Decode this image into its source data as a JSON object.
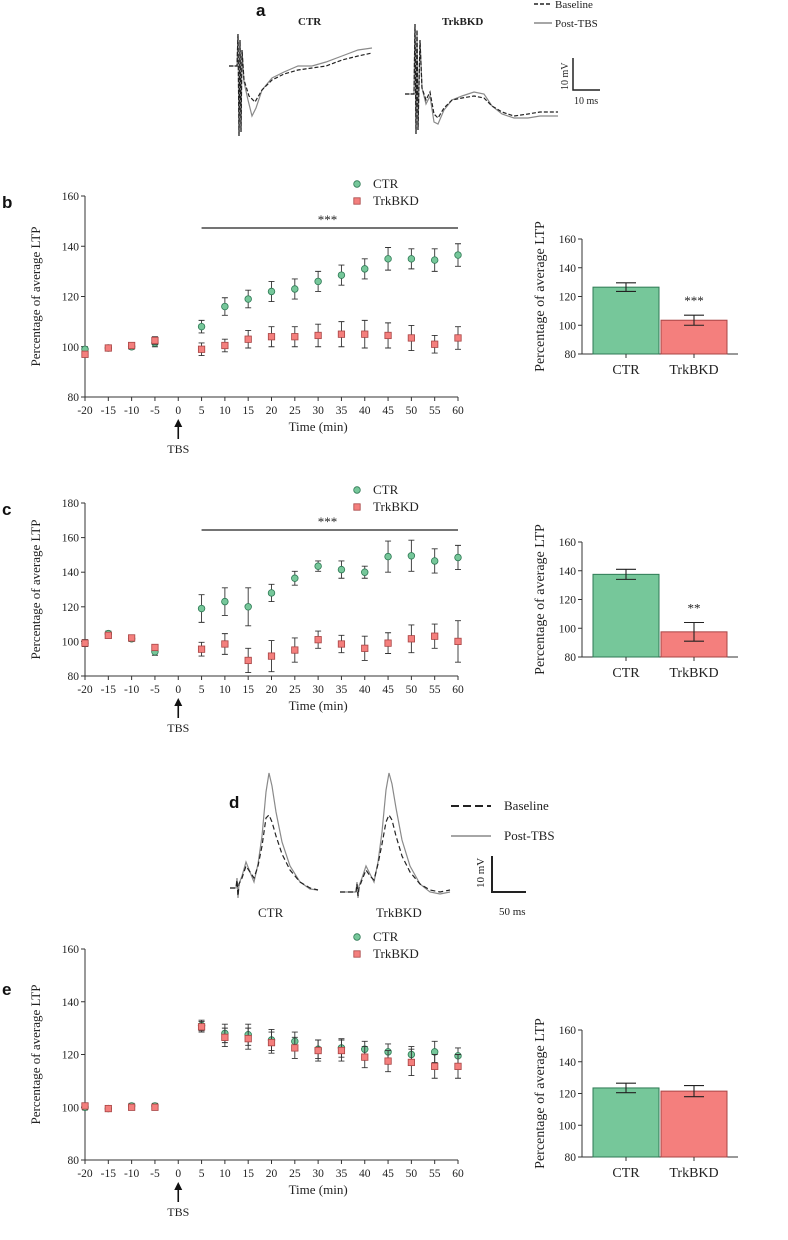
{
  "colors": {
    "ctr": "#76c79a",
    "ctr_stroke": "#2f7a55",
    "trk": "#f47f7d",
    "trk_stroke": "#a84444",
    "trace_base": "#222222",
    "trace_post": "#8a8a8a"
  },
  "panel_a": {
    "letter": "a",
    "trace_titles": [
      "CTR",
      "TrkBKD"
    ],
    "legend": {
      "baseline": "Baseline",
      "post": "Post-TBS"
    },
    "scale_v": "10 mV",
    "scale_h": "10 ms"
  },
  "panel_d": {
    "letter": "d",
    "trace_labels": [
      "CTR",
      "TrkBKD"
    ],
    "legend": {
      "baseline": "Baseline",
      "post": "Post-TBS"
    },
    "scale_v": "10 mV",
    "scale_h": "50 ms"
  },
  "tbs_label": "TBS",
  "chart_data": [
    {
      "id": "b_time",
      "letter": "b",
      "type": "scatter",
      "xlabel": "Time (min)",
      "ylabel": "Percentage of average LTP",
      "x": [
        -20,
        -15,
        -10,
        -5,
        5,
        10,
        15,
        20,
        25,
        30,
        35,
        40,
        45,
        50,
        55,
        60
      ],
      "xticks": [
        "-20",
        "-15",
        "-10",
        "-5",
        "0",
        "5",
        "10",
        "15",
        "20",
        "25",
        "30",
        "35",
        "40",
        "45",
        "50",
        "55",
        "60"
      ],
      "yticks": [
        "80",
        "100",
        "120",
        "140",
        "160"
      ],
      "ylim": [
        80,
        160
      ],
      "series": [
        {
          "name": "CTR",
          "values": [
            99,
            99.5,
            100,
            101.5,
            108,
            116,
            119,
            122,
            123,
            126,
            128.5,
            131,
            135,
            135,
            134.5,
            136.5
          ],
          "err": [
            1,
            1,
            1,
            1.5,
            2.5,
            3.5,
            3.5,
            4,
            4,
            4,
            4,
            4,
            4.5,
            4,
            4.5,
            4.5
          ]
        },
        {
          "name": "TrkBKD",
          "values": [
            97,
            99.5,
            100.5,
            102.5,
            99,
            100.5,
            103,
            104,
            104,
            104.5,
            105,
            105,
            104.5,
            103.5,
            101,
            103.5
          ],
          "err": [
            1,
            1,
            1,
            1.5,
            2.5,
            2.5,
            3.5,
            4,
            4,
            4.5,
            5,
            5.5,
            5,
            5,
            3.5,
            4.5
          ]
        }
      ],
      "significance": "***",
      "legend": [
        "CTR",
        "TrkBKD"
      ]
    },
    {
      "id": "b_bar",
      "type": "bar",
      "ylabel": "Percentage of average LTP",
      "categories": [
        "CTR",
        "TrkBKD"
      ],
      "values": [
        126.5,
        103.5
      ],
      "err": [
        3,
        3.5
      ],
      "yticks": [
        "80",
        "100",
        "120",
        "140",
        "160"
      ],
      "ylim": [
        80,
        160
      ],
      "annotation": "***"
    },
    {
      "id": "c_time",
      "letter": "c",
      "type": "scatter",
      "xlabel": "Time (min)",
      "ylabel": "Percentage of average LTP",
      "x": [
        -20,
        -15,
        -10,
        -5,
        5,
        10,
        15,
        20,
        25,
        30,
        35,
        40,
        45,
        50,
        55,
        60
      ],
      "xticks": [
        "-20",
        "-15",
        "-10",
        "-5",
        "0",
        "5",
        "10",
        "15",
        "20",
        "25",
        "30",
        "35",
        "40",
        "45",
        "50",
        "55",
        "60"
      ],
      "yticks": [
        "80",
        "100",
        "120",
        "140",
        "160",
        "180"
      ],
      "ylim": [
        80,
        180
      ],
      "series": [
        {
          "name": "CTR",
          "values": [
            99,
            104.5,
            101.5,
            94,
            119,
            123,
            120,
            128,
            136.5,
            143.5,
            141.5,
            140,
            149,
            149.5,
            146.5,
            148.5
          ],
          "err": [
            2,
            1.5,
            1.5,
            2,
            8,
            8,
            11,
            5,
            4,
            3,
            5,
            3.5,
            9,
            9,
            7,
            7
          ]
        },
        {
          "name": "TrkBKD",
          "values": [
            99,
            103.5,
            102,
            96.5,
            95.5,
            98.5,
            89,
            91.5,
            95,
            101,
            98.5,
            96,
            99,
            101.5,
            103,
            100
          ],
          "err": [
            2,
            1.5,
            1.5,
            1.5,
            4,
            6,
            7,
            9,
            7,
            5,
            5,
            7,
            6,
            8,
            7,
            12
          ]
        }
      ],
      "significance": "***",
      "legend": [
        "CTR",
        "TrkBKD"
      ]
    },
    {
      "id": "c_bar",
      "type": "bar",
      "ylabel": "Percentage  of average LTP",
      "categories": [
        "CTR",
        "TrkBKD"
      ],
      "values": [
        137.5,
        97.5
      ],
      "err": [
        3.5,
        6.5
      ],
      "yticks": [
        "80",
        "100",
        "120",
        "140",
        "160"
      ],
      "ylim": [
        80,
        160
      ],
      "annotation": "**"
    },
    {
      "id": "e_time",
      "letter": "e",
      "type": "scatter",
      "xlabel": "Time (min)",
      "ylabel": "Percentage of average LTP",
      "x": [
        -20,
        -15,
        -10,
        -5,
        5,
        10,
        15,
        20,
        25,
        30,
        35,
        40,
        45,
        50,
        55,
        60
      ],
      "xticks": [
        "-20",
        "-15",
        "-10",
        "-5",
        "0",
        "5",
        "10",
        "15",
        "20",
        "25",
        "30",
        "35",
        "40",
        "45",
        "50",
        "55",
        "60"
      ],
      "yticks": [
        "80",
        "100",
        "120",
        "140",
        "160"
      ],
      "ylim": [
        80,
        160
      ],
      "series": [
        {
          "name": "CTR",
          "values": [
            100,
            99.5,
            100.5,
            100.5,
            131,
            128,
            127.5,
            125.5,
            125,
            122,
            122.5,
            122,
            121,
            120,
            121,
            119.5
          ],
          "err": [
            1,
            1,
            1,
            1,
            2,
            3.5,
            4,
            4,
            3.5,
            3.5,
            3.5,
            3,
            3,
            3,
            4,
            3
          ]
        },
        {
          "name": "TrkBKD",
          "values": [
            100.5,
            99.5,
            100,
            100,
            130.5,
            126.5,
            126,
            124.5,
            122.5,
            121.5,
            121.5,
            119,
            117.5,
            117,
            115.5,
            115.5
          ],
          "err": [
            1,
            1,
            1,
            1,
            2,
            3.5,
            4,
            4,
            4,
            4,
            4,
            4,
            4,
            5,
            4.5,
            4.5
          ]
        }
      ],
      "legend": [
        "CTR",
        "TrkBKD"
      ]
    },
    {
      "id": "e_bar",
      "type": "bar",
      "ylabel": "Percentage of average LTP",
      "categories": [
        "CTR",
        "TrkBKD"
      ],
      "values": [
        123.5,
        121.5
      ],
      "err": [
        3,
        3.5
      ],
      "yticks": [
        "80",
        "100",
        "120",
        "140",
        "160"
      ],
      "ylim": [
        80,
        160
      ]
    }
  ]
}
